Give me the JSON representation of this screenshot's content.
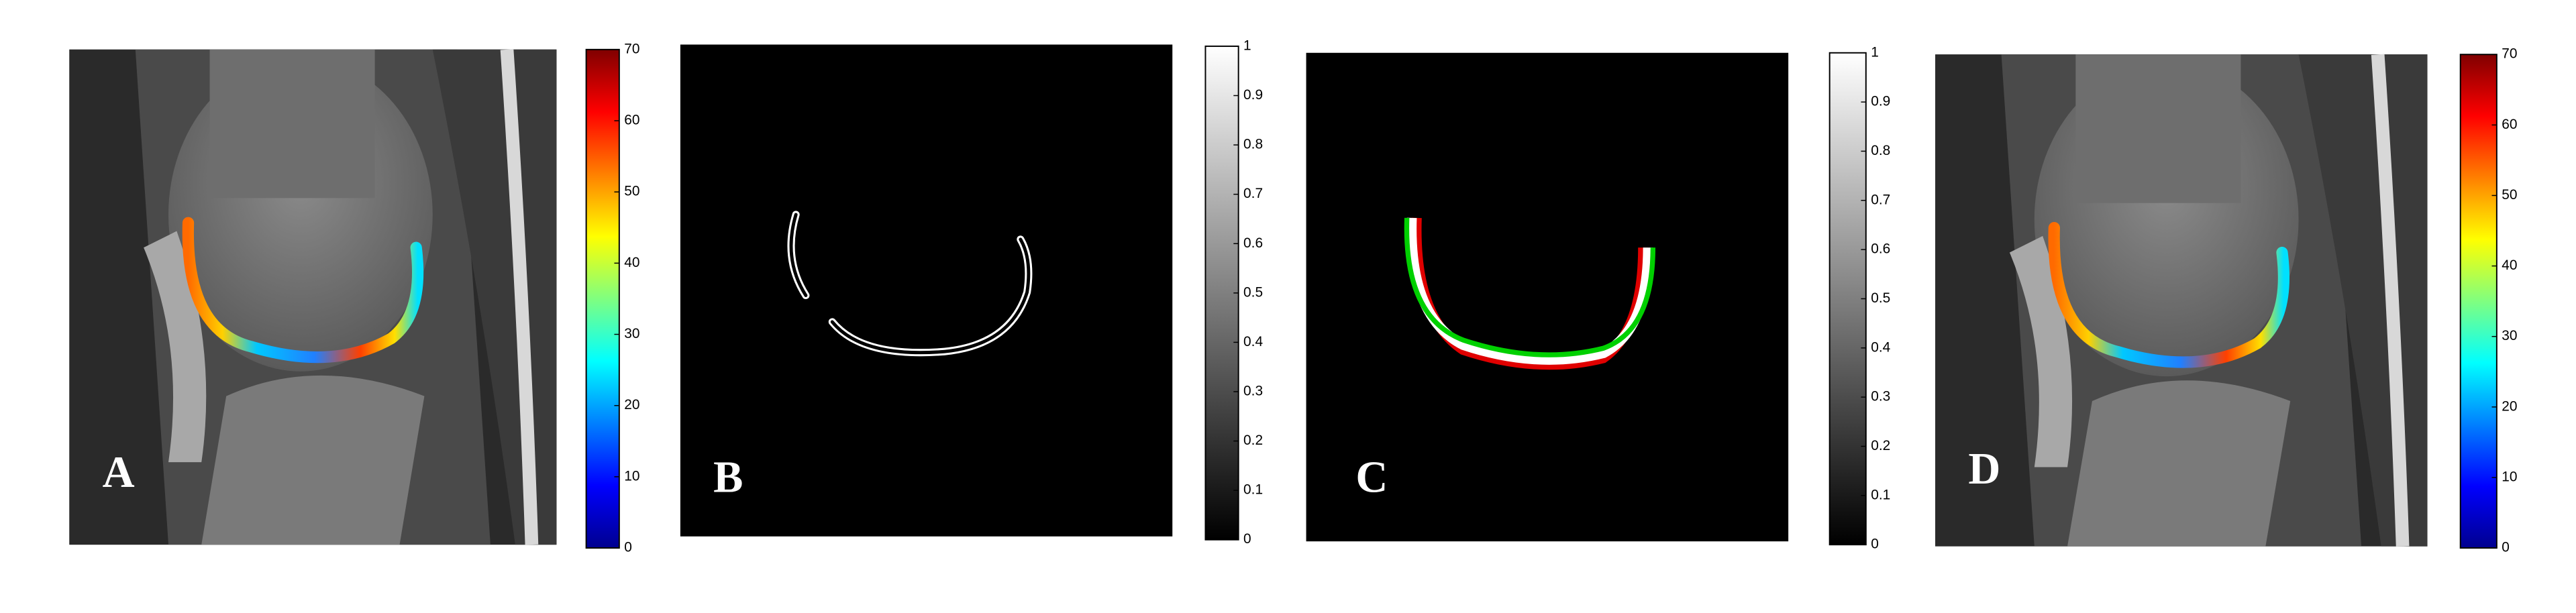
{
  "panels": [
    {
      "label": "A",
      "colorbar": {
        "ticks": [
          0,
          10,
          20,
          30,
          40,
          50,
          60,
          70
        ]
      }
    },
    {
      "label": "B",
      "colorbar": {
        "ticks": [
          0,
          0.1,
          0.2,
          0.3,
          0.4,
          0.5,
          0.6,
          0.7,
          0.8,
          0.9,
          1
        ]
      }
    },
    {
      "label": "C",
      "colorbar": {
        "ticks": [
          0,
          0.1,
          0.2,
          0.3,
          0.4,
          0.5,
          0.6,
          0.7,
          0.8,
          0.9,
          1
        ]
      }
    },
    {
      "label": "D",
      "colorbar": {
        "ticks": [
          0,
          10,
          20,
          30,
          40,
          50,
          60,
          70
        ]
      }
    }
  ]
}
